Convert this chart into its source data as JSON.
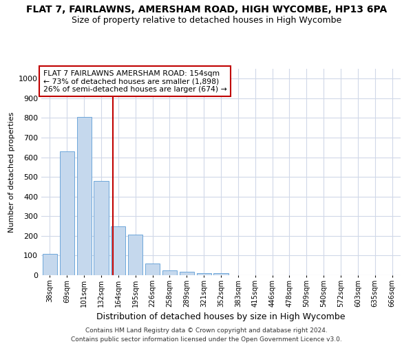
{
  "title1": "FLAT 7, FAIRLAWNS, AMERSHAM ROAD, HIGH WYCOMBE, HP13 6PA",
  "title2": "Size of property relative to detached houses in High Wycombe",
  "xlabel": "Distribution of detached houses by size in High Wycombe",
  "ylabel": "Number of detached properties",
  "footnote": "Contains HM Land Registry data © Crown copyright and database right 2024.\nContains public sector information licensed under the Open Government Licence v3.0.",
  "bar_labels": [
    "38sqm",
    "69sqm",
    "101sqm",
    "132sqm",
    "164sqm",
    "195sqm",
    "226sqm",
    "258sqm",
    "289sqm",
    "321sqm",
    "352sqm",
    "383sqm",
    "415sqm",
    "446sqm",
    "478sqm",
    "509sqm",
    "540sqm",
    "572sqm",
    "603sqm",
    "635sqm",
    "666sqm"
  ],
  "bar_values": [
    110,
    630,
    805,
    480,
    250,
    205,
    60,
    25,
    18,
    10,
    10,
    0,
    0,
    0,
    0,
    0,
    0,
    0,
    0,
    0,
    0
  ],
  "bar_color": "#c5d8ed",
  "bar_edge_color": "#5b9bd5",
  "vline_x": 3.69,
  "vline_color": "#c00000",
  "annotation_text": "FLAT 7 FAIRLAWNS AMERSHAM ROAD: 154sqm\n← 73% of detached houses are smaller (1,898)\n26% of semi-detached houses are larger (674) →",
  "annotation_box_color": "#ffffff",
  "annotation_box_edge": "#c00000",
  "ylim": [
    0,
    1050
  ],
  "yticks": [
    0,
    100,
    200,
    300,
    400,
    500,
    600,
    700,
    800,
    900,
    1000
  ],
  "bg_color": "#ffffff",
  "grid_color": "#d0d8e8",
  "title1_fontsize": 10,
  "title2_fontsize": 9,
  "bar_width": 0.85
}
